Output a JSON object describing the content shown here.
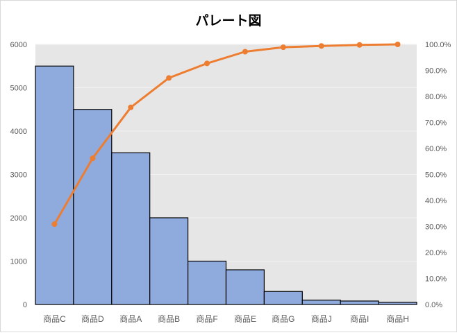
{
  "chart_data": {
    "type": "bar",
    "title": "パレート図",
    "categories": [
      "商品C",
      "商品D",
      "商品A",
      "商品B",
      "商品F",
      "商品E",
      "商品G",
      "商品J",
      "商品I",
      "商品H"
    ],
    "series": [
      {
        "values": [
          5500,
          4500,
          3500,
          2000,
          1000,
          800,
          300,
          100,
          80,
          50
        ],
        "axis": "left",
        "type": "bar"
      },
      {
        "values": [
          30.9,
          56.2,
          75.8,
          87.1,
          92.7,
          97.2,
          98.9,
          99.4,
          99.8,
          100.0
        ],
        "axis": "right",
        "type": "line",
        "unit": "%"
      }
    ],
    "ylim": [
      0,
      6000
    ],
    "yticks": [
      "0",
      "1000",
      "2000",
      "3000",
      "4000",
      "5000",
      "6000"
    ],
    "y2lim": [
      0,
      100
    ],
    "y2ticks": [
      "0.0%",
      "10.0%",
      "20.0%",
      "30.0%",
      "40.0%",
      "50.0%",
      "60.0%",
      "70.0%",
      "80.0%",
      "90.0%",
      "100.0%"
    ],
    "grid": true,
    "legend": "none",
    "colors": {
      "bar_fill": "#8faadc",
      "bar_stroke": "#000000",
      "line": "#ed7d31",
      "plot_bg": "#e7e6e6",
      "gridline": "#f2f2f2",
      "tick_text": "#595959"
    }
  }
}
